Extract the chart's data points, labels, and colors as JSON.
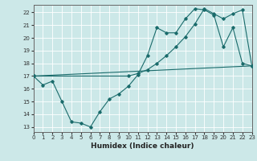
{
  "xlabel": "Humidex (Indice chaleur)",
  "bg_color": "#cce8e8",
  "grid_color": "#ffffff",
  "line_color": "#1a6b6b",
  "xlim": [
    0,
    23
  ],
  "ylim": [
    12.6,
    22.6
  ],
  "xticks": [
    0,
    1,
    2,
    3,
    4,
    5,
    6,
    7,
    8,
    9,
    10,
    11,
    12,
    13,
    14,
    15,
    16,
    17,
    18,
    19,
    20,
    21,
    22,
    23
  ],
  "yticks": [
    13,
    14,
    15,
    16,
    17,
    18,
    19,
    20,
    21,
    22
  ],
  "curve1_x": [
    0,
    1,
    2,
    3,
    4,
    5,
    6,
    7,
    8,
    9,
    10,
    11,
    12,
    13,
    14,
    15,
    16,
    17,
    18,
    19,
    20,
    21,
    22,
    23
  ],
  "curve1_y": [
    17,
    16.3,
    16.6,
    15,
    13.4,
    13.3,
    13,
    14.2,
    15.2,
    15.6,
    16.2,
    17.1,
    18.6,
    20.8,
    20.4,
    20.4,
    21.5,
    22.3,
    22.2,
    21.8,
    19.3,
    20.8,
    18,
    17.8
  ],
  "curve2_x": [
    0,
    23
  ],
  "curve2_y": [
    17,
    17.8
  ],
  "curve3_x": [
    0,
    10,
    11,
    12,
    13,
    14,
    15,
    16,
    17,
    18,
    19,
    20,
    21,
    22,
    23
  ],
  "curve3_y": [
    17,
    17.0,
    17.2,
    17.5,
    18.0,
    18.6,
    19.3,
    20.1,
    21.1,
    22.3,
    21.9,
    21.5,
    21.9,
    22.2,
    17.8
  ]
}
